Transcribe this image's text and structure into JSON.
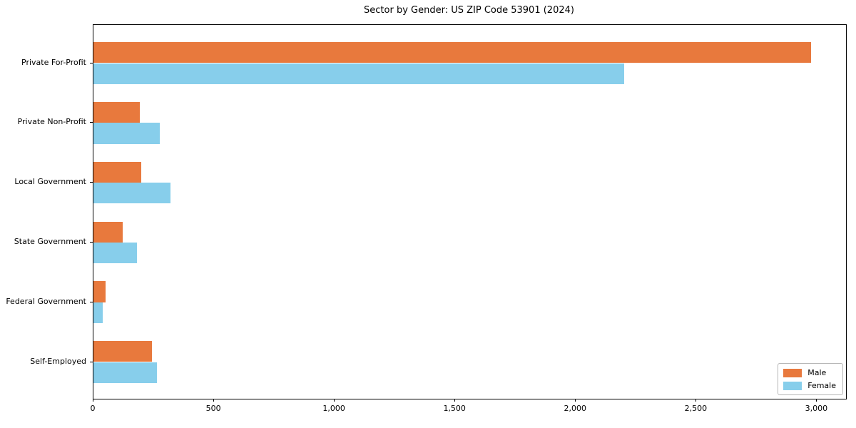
{
  "chart_data": {
    "type": "bar",
    "orientation": "horizontal",
    "title": "Sector by Gender: US ZIP Code 53901 (2024)",
    "categories": [
      "Private For-Profit",
      "Private Non-Profit",
      "Local Government",
      "State Government",
      "Federal Government",
      "Self-Employed"
    ],
    "series": [
      {
        "name": "Male",
        "color": "#e8793d",
        "values": [
          2975,
          192,
          197,
          120,
          51,
          243
        ]
      },
      {
        "name": "Female",
        "color": "#87ceeb",
        "values": [
          2200,
          274,
          320,
          180,
          38,
          264
        ]
      }
    ],
    "xlabel": "",
    "ylabel": "",
    "xlim": [
      0,
      3120
    ],
    "x_ticks": [
      0,
      500,
      1000,
      1500,
      2000,
      2500,
      3000
    ],
    "x_tick_labels": [
      "0",
      "500",
      "1,000",
      "1,500",
      "2,000",
      "2,500",
      "3,000"
    ],
    "grid": false,
    "legend": {
      "position": "lower right"
    }
  },
  "colors": {
    "male": "#e8793d",
    "female": "#87ceeb",
    "axis": "#000000",
    "legend_border": "#b7b7b7",
    "background": "#ffffff"
  }
}
